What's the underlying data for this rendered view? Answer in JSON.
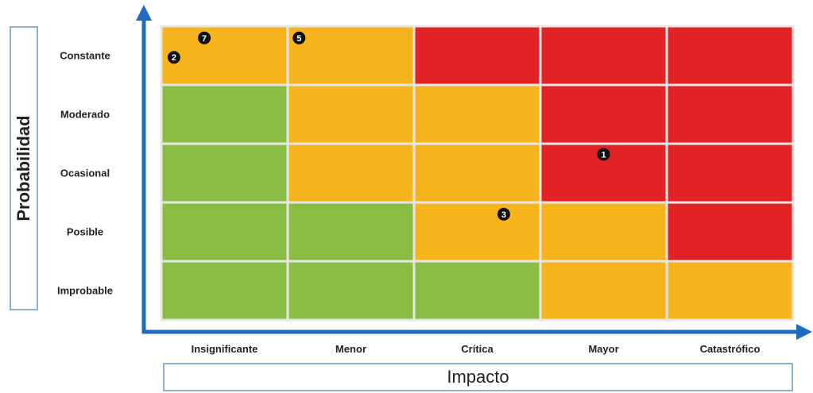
{
  "chart_data": {
    "type": "heatmap",
    "title": "",
    "xlabel": "Impacto",
    "ylabel": "Probabilidad",
    "x_categories": [
      "Insignificante",
      "Menor",
      "Crítica",
      "Mayor",
      "Catastrófico"
    ],
    "y_categories": [
      "Constante",
      "Moderado",
      "Ocasional",
      "Posible",
      "Improbable"
    ],
    "colors": {
      "green": "#8bbd45",
      "amber": "#f8b41c",
      "red": "#e32226",
      "grid": "#e6e6e6",
      "axis": "#1f6bc0"
    },
    "cells": [
      [
        "amber",
        "amber",
        "red",
        "red",
        "red"
      ],
      [
        "green",
        "amber",
        "amber",
        "red",
        "red"
      ],
      [
        "green",
        "amber",
        "amber",
        "red",
        "red"
      ],
      [
        "green",
        "green",
        "amber",
        "amber",
        "red"
      ],
      [
        "green",
        "green",
        "green",
        "amber",
        "amber"
      ]
    ],
    "markers": [
      {
        "label": "7",
        "impact": "Insignificante",
        "probability": "Constante"
      },
      {
        "label": "2",
        "impact": "Insignificante",
        "probability": "Constante"
      },
      {
        "label": "5",
        "impact": "Menor",
        "probability": "Constante"
      },
      {
        "label": "1",
        "impact": "Mayor",
        "probability": "Ocasional"
      },
      {
        "label": "3",
        "impact": "Crítica",
        "probability": "Posible"
      }
    ]
  }
}
